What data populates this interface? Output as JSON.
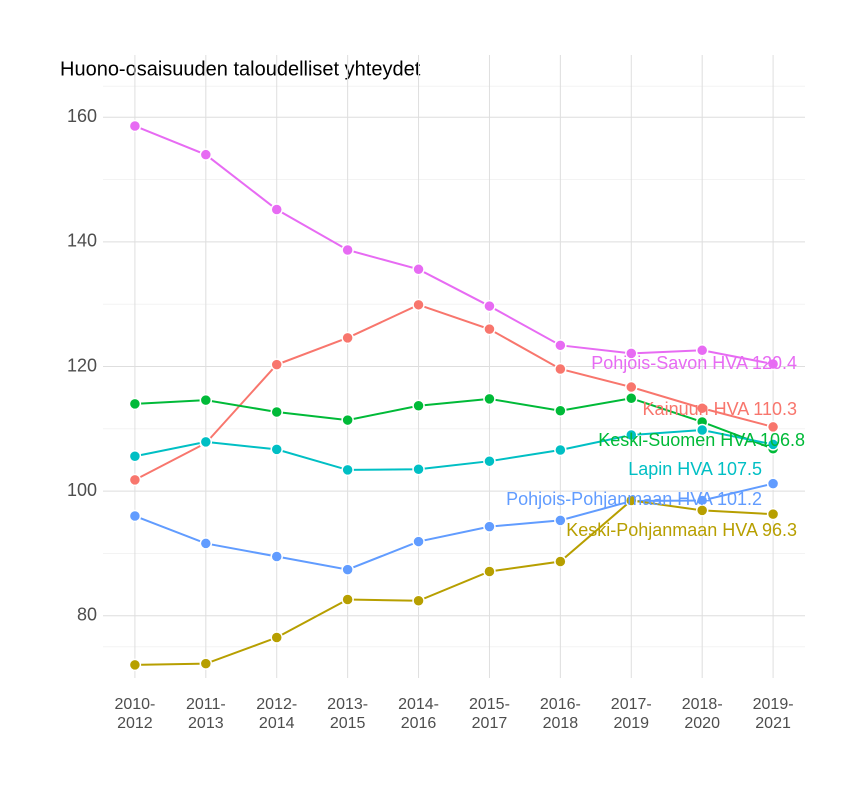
{
  "chart_data": {
    "type": "line",
    "title": "Huono-osaisuuden taloudelliset yhteydet",
    "categories": [
      [
        "2010-",
        "2012"
      ],
      [
        "2011-",
        "2013"
      ],
      [
        "2012-",
        "2014"
      ],
      [
        "2013-",
        "2015"
      ],
      [
        "2014-",
        "2016"
      ],
      [
        "2015-",
        "2017"
      ],
      [
        "2016-",
        "2018"
      ],
      [
        "2017-",
        "2019"
      ],
      [
        "2018-",
        "2020"
      ],
      [
        "2019-",
        "2021"
      ]
    ],
    "ylim": [
      70,
      170
    ],
    "yticks": [
      80,
      100,
      120,
      140,
      160
    ],
    "grid": true,
    "series": [
      {
        "name": "Pohjois-Savon HVA 120.4",
        "color": "#e76bf3",
        "values": [
          158.6,
          154.0,
          145.2,
          138.7,
          135.6,
          129.7,
          123.4,
          122.1,
          122.6,
          120.4
        ]
      },
      {
        "name": "Kainuun HVA 110.3",
        "color": "#f8766d",
        "values": [
          101.8,
          107.7,
          120.3,
          124.6,
          129.9,
          126.0,
          119.6,
          116.7,
          113.3,
          110.3
        ]
      },
      {
        "name": "Keski-Suomen HVA 106.8",
        "color": "#00ba38",
        "values": [
          114.0,
          114.6,
          112.7,
          111.4,
          113.7,
          114.8,
          112.9,
          114.9,
          111.1,
          106.8
        ]
      },
      {
        "name": "Lapin HVA 107.5",
        "color": "#00bfc4",
        "values": [
          105.6,
          107.9,
          106.7,
          103.4,
          103.5,
          104.8,
          106.6,
          109.0,
          109.8,
          107.5
        ]
      },
      {
        "name": "Pohjois-Pohjanmaan HVA 101.2",
        "color": "#619cff",
        "values": [
          96.0,
          91.6,
          89.5,
          87.4,
          91.9,
          94.3,
          95.3,
          98.4,
          98.5,
          101.2
        ]
      },
      {
        "name": "Keski-Pohjanmaan HVA 96.3",
        "color": "#b79f00",
        "values": [
          72.1,
          72.3,
          76.5,
          82.6,
          82.4,
          87.1,
          88.7,
          98.5,
          96.9,
          96.3
        ]
      }
    ]
  }
}
